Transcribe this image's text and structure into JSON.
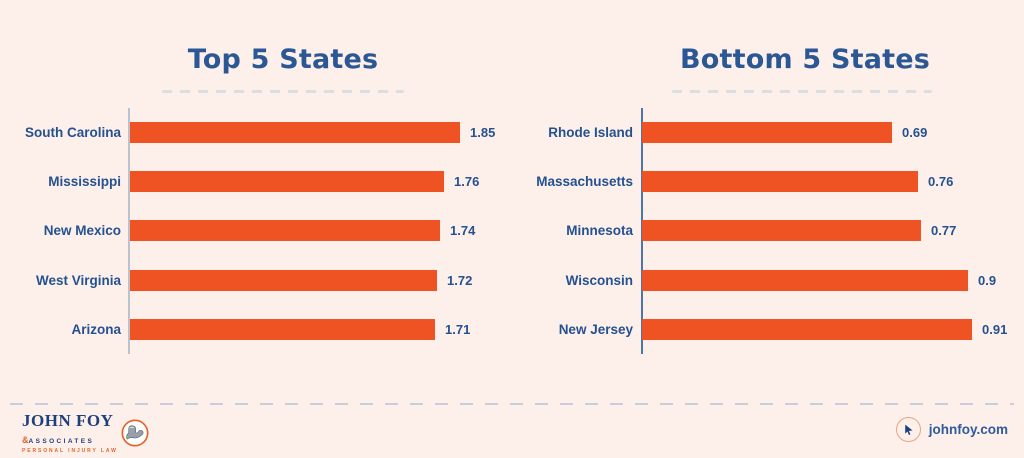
{
  "chart_data": [
    {
      "type": "bar",
      "orientation": "horizontal",
      "title": "Top 5 States",
      "categories": [
        "South Carolina",
        "Mississippi",
        "New Mexico",
        "West Virginia",
        "Arizona"
      ],
      "values": [
        1.85,
        1.76,
        1.74,
        1.72,
        1.71
      ],
      "value_labels": [
        "1.85",
        "1.76",
        "1.74",
        "1.72",
        "1.71"
      ],
      "axis_max": 1.85,
      "xlabel": "",
      "ylabel": "",
      "grid": false,
      "legend": "none",
      "bar_color": "#ef5323",
      "label_color": "#24518f",
      "axis_color": "#b9c2cd"
    },
    {
      "type": "bar",
      "orientation": "horizontal",
      "title": "Bottom 5 States",
      "categories": [
        "Rhode Island",
        "Massachusetts",
        "Minnesota",
        "Wisconsin",
        "New Jersey"
      ],
      "values": [
        0.69,
        0.76,
        0.77,
        0.9,
        0.91
      ],
      "value_labels": [
        "0.69",
        "0.76",
        "0.77",
        "0.9",
        "0.91"
      ],
      "axis_max": 0.91,
      "xlabel": "",
      "ylabel": "",
      "grid": false,
      "legend": "none",
      "bar_color": "#ef5323",
      "label_color": "#24518f",
      "axis_color": "#4f74a6"
    }
  ],
  "footer": {
    "brand_name": "JOHN FOY",
    "brand_amp": "&",
    "brand_suffix": "ASSOCIATES",
    "brand_tagline": "PERSONAL INJURY LAW",
    "emblem_icon": "flexed-arm-icon",
    "website_icon": "mouse-cursor-icon",
    "website": "johnfoy.com"
  },
  "colors": {
    "background": "#fdf0ea",
    "bar_orange": "#ef5323",
    "title_blue": "#2b5795",
    "label_blue": "#24518f",
    "axis_left": "#b9c2cd",
    "axis_right": "#4f74a6",
    "title_dash": "#dbdde0",
    "footer_dash": "#c7cfdf",
    "brand_navy": "#1e3f7d",
    "brand_orange": "#e5622a",
    "website_text": "#2d5b9b"
  }
}
